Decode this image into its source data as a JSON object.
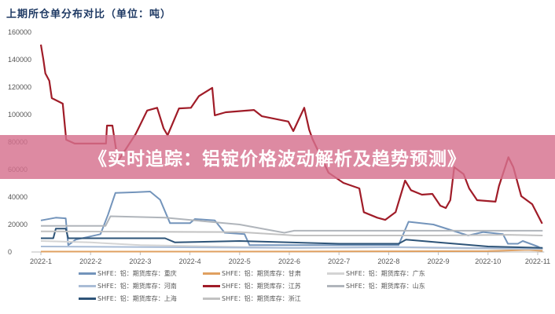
{
  "chart_data": {
    "type": "line",
    "title": "上期所仓单分布对比（单位：吨）",
    "banner": "《实时追踪：铝锭价格波动解析及趋势预测》",
    "xlabel": "",
    "ylabel": "",
    "x_ticks": [
      "2022-1",
      "2022-2",
      "2022-3",
      "2022-4",
      "2022-5",
      "2022-6",
      "2022-7",
      "2022-8",
      "2022-9",
      "2022-10",
      "2022-11"
    ],
    "x_unit": "months since 2022-1",
    "xlim": [
      0,
      10.1
    ],
    "ylim": [
      0,
      160000
    ],
    "y_ticks": [
      0,
      20000,
      40000,
      60000,
      80000,
      100000,
      120000,
      140000,
      160000
    ],
    "grid": false,
    "legend_position": "bottom",
    "series": [
      {
        "name": "SHFE：铝：期货库存：重庆",
        "color": "#7394bb",
        "points": [
          [
            0,
            23000
          ],
          [
            0.3,
            25000
          ],
          [
            0.5,
            24500
          ],
          [
            0.55,
            5000
          ],
          [
            0.7,
            9000
          ],
          [
            1.2,
            13000
          ],
          [
            1.35,
            27000
          ],
          [
            1.5,
            43000
          ],
          [
            1.9,
            43500
          ],
          [
            2.2,
            44000
          ],
          [
            2.4,
            38000
          ],
          [
            2.6,
            21000
          ],
          [
            3.0,
            21000
          ],
          [
            3.1,
            24000
          ],
          [
            3.5,
            23000
          ],
          [
            3.7,
            14000
          ],
          [
            4.1,
            13000
          ],
          [
            4.2,
            5000
          ],
          [
            7.2,
            5000
          ],
          [
            7.4,
            22000
          ],
          [
            7.9,
            20000
          ],
          [
            8.6,
            12000
          ],
          [
            8.9,
            14500
          ],
          [
            9.3,
            13000
          ],
          [
            9.4,
            6000
          ],
          [
            9.6,
            6000
          ],
          [
            9.7,
            8000
          ],
          [
            10.0,
            4000
          ],
          [
            10.1,
            2000
          ]
        ]
      },
      {
        "name": "SHFE：铝：期货库存：甘肃",
        "color": "#e0a060",
        "points": [
          [
            0,
            300
          ],
          [
            3,
            300
          ],
          [
            6,
            400
          ],
          [
            9,
            600
          ],
          [
            9.8,
            1500
          ],
          [
            10.1,
            800
          ]
        ]
      },
      {
        "name": "SHFE：铝：期货库存：广东",
        "color": "#d4d4d4",
        "points": [
          [
            0,
            8000
          ],
          [
            1.0,
            7000
          ],
          [
            2.0,
            5000
          ],
          [
            3.5,
            4000
          ],
          [
            5.0,
            3000
          ],
          [
            7.0,
            3500
          ],
          [
            8.5,
            2500
          ],
          [
            10.1,
            2000
          ]
        ]
      },
      {
        "name": "SHFE：铝：期货库存：河南",
        "color": "#a9bcd6",
        "points": [
          [
            0,
            4000
          ],
          [
            2.5,
            3500
          ],
          [
            5,
            3000
          ],
          [
            7.3,
            3500
          ],
          [
            8.5,
            3000
          ],
          [
            10.1,
            2500
          ]
        ]
      },
      {
        "name": "SHFE：铝：期货库存：江苏",
        "color": "#a01c28",
        "points": [
          [
            0,
            151000
          ],
          [
            0.05,
            140000
          ],
          [
            0.09,
            130000
          ],
          [
            0.17,
            124600
          ],
          [
            0.22,
            112000
          ],
          [
            0.33,
            110000
          ],
          [
            0.44,
            108000
          ],
          [
            0.51,
            81700
          ],
          [
            0.68,
            78900
          ],
          [
            1.31,
            78900
          ],
          [
            1.33,
            92000
          ],
          [
            1.44,
            92000
          ],
          [
            1.49,
            80000
          ],
          [
            1.55,
            66000
          ],
          [
            1.91,
            86000
          ],
          [
            2.14,
            103000
          ],
          [
            2.34,
            105000
          ],
          [
            2.47,
            90000
          ],
          [
            2.55,
            85000
          ],
          [
            2.78,
            104500
          ],
          [
            3.02,
            105000
          ],
          [
            3.18,
            113500
          ],
          [
            3.45,
            119500
          ],
          [
            3.5,
            99500
          ],
          [
            3.72,
            101700
          ],
          [
            4.29,
            103400
          ],
          [
            4.45,
            98800
          ],
          [
            4.98,
            95000
          ],
          [
            5.08,
            88000
          ],
          [
            5.3,
            105000
          ],
          [
            5.4,
            89000
          ],
          [
            5.47,
            82000
          ],
          [
            5.79,
            57700
          ],
          [
            6.09,
            50300
          ],
          [
            6.41,
            46300
          ],
          [
            6.5,
            29000
          ],
          [
            6.77,
            25000
          ],
          [
            6.93,
            23400
          ],
          [
            7.14,
            29000
          ],
          [
            7.33,
            52000
          ],
          [
            7.45,
            45000
          ],
          [
            7.67,
            41700
          ],
          [
            7.88,
            42300
          ],
          [
            8.04,
            33700
          ],
          [
            8.15,
            32000
          ],
          [
            8.24,
            37700
          ],
          [
            8.32,
            61700
          ],
          [
            8.51,
            56600
          ],
          [
            8.62,
            46300
          ],
          [
            8.78,
            37700
          ],
          [
            9.15,
            36600
          ],
          [
            9.22,
            48000
          ],
          [
            9.41,
            69000
          ],
          [
            9.51,
            61700
          ],
          [
            9.67,
            40600
          ],
          [
            9.89,
            34800
          ],
          [
            10.09,
            20600
          ]
        ]
      },
      {
        "name": "SHFE：铝：期货库存：山东",
        "color": "#b0b5bb",
        "points": [
          [
            0,
            19000
          ],
          [
            1.3,
            19000
          ],
          [
            1.4,
            26000
          ],
          [
            2.5,
            25000
          ],
          [
            4.0,
            20000
          ],
          [
            4.9,
            14000
          ],
          [
            5.1,
            15500
          ],
          [
            8.0,
            15500
          ],
          [
            10.1,
            15500
          ]
        ]
      },
      {
        "name": "SHFE：铝：期货库存：上海",
        "color": "#2e5478",
        "points": [
          [
            0,
            10000
          ],
          [
            0.25,
            10000
          ],
          [
            0.3,
            17000
          ],
          [
            0.5,
            17000
          ],
          [
            0.55,
            10000
          ],
          [
            2.5,
            10000
          ],
          [
            2.7,
            7000
          ],
          [
            4.0,
            8000
          ],
          [
            6.0,
            6000
          ],
          [
            7.2,
            6000
          ],
          [
            7.35,
            9000
          ],
          [
            8.0,
            7000
          ],
          [
            9.0,
            4000
          ],
          [
            10.1,
            3000
          ]
        ]
      },
      {
        "name": "SHFE：铝：期货库存：浙江",
        "color": "#c2c2c2",
        "points": [
          [
            0,
            15000
          ],
          [
            4.0,
            14500
          ],
          [
            4.9,
            12500
          ],
          [
            5.1,
            12000
          ],
          [
            8.0,
            12000
          ],
          [
            9.4,
            12500
          ],
          [
            10.1,
            12000
          ]
        ]
      }
    ]
  }
}
